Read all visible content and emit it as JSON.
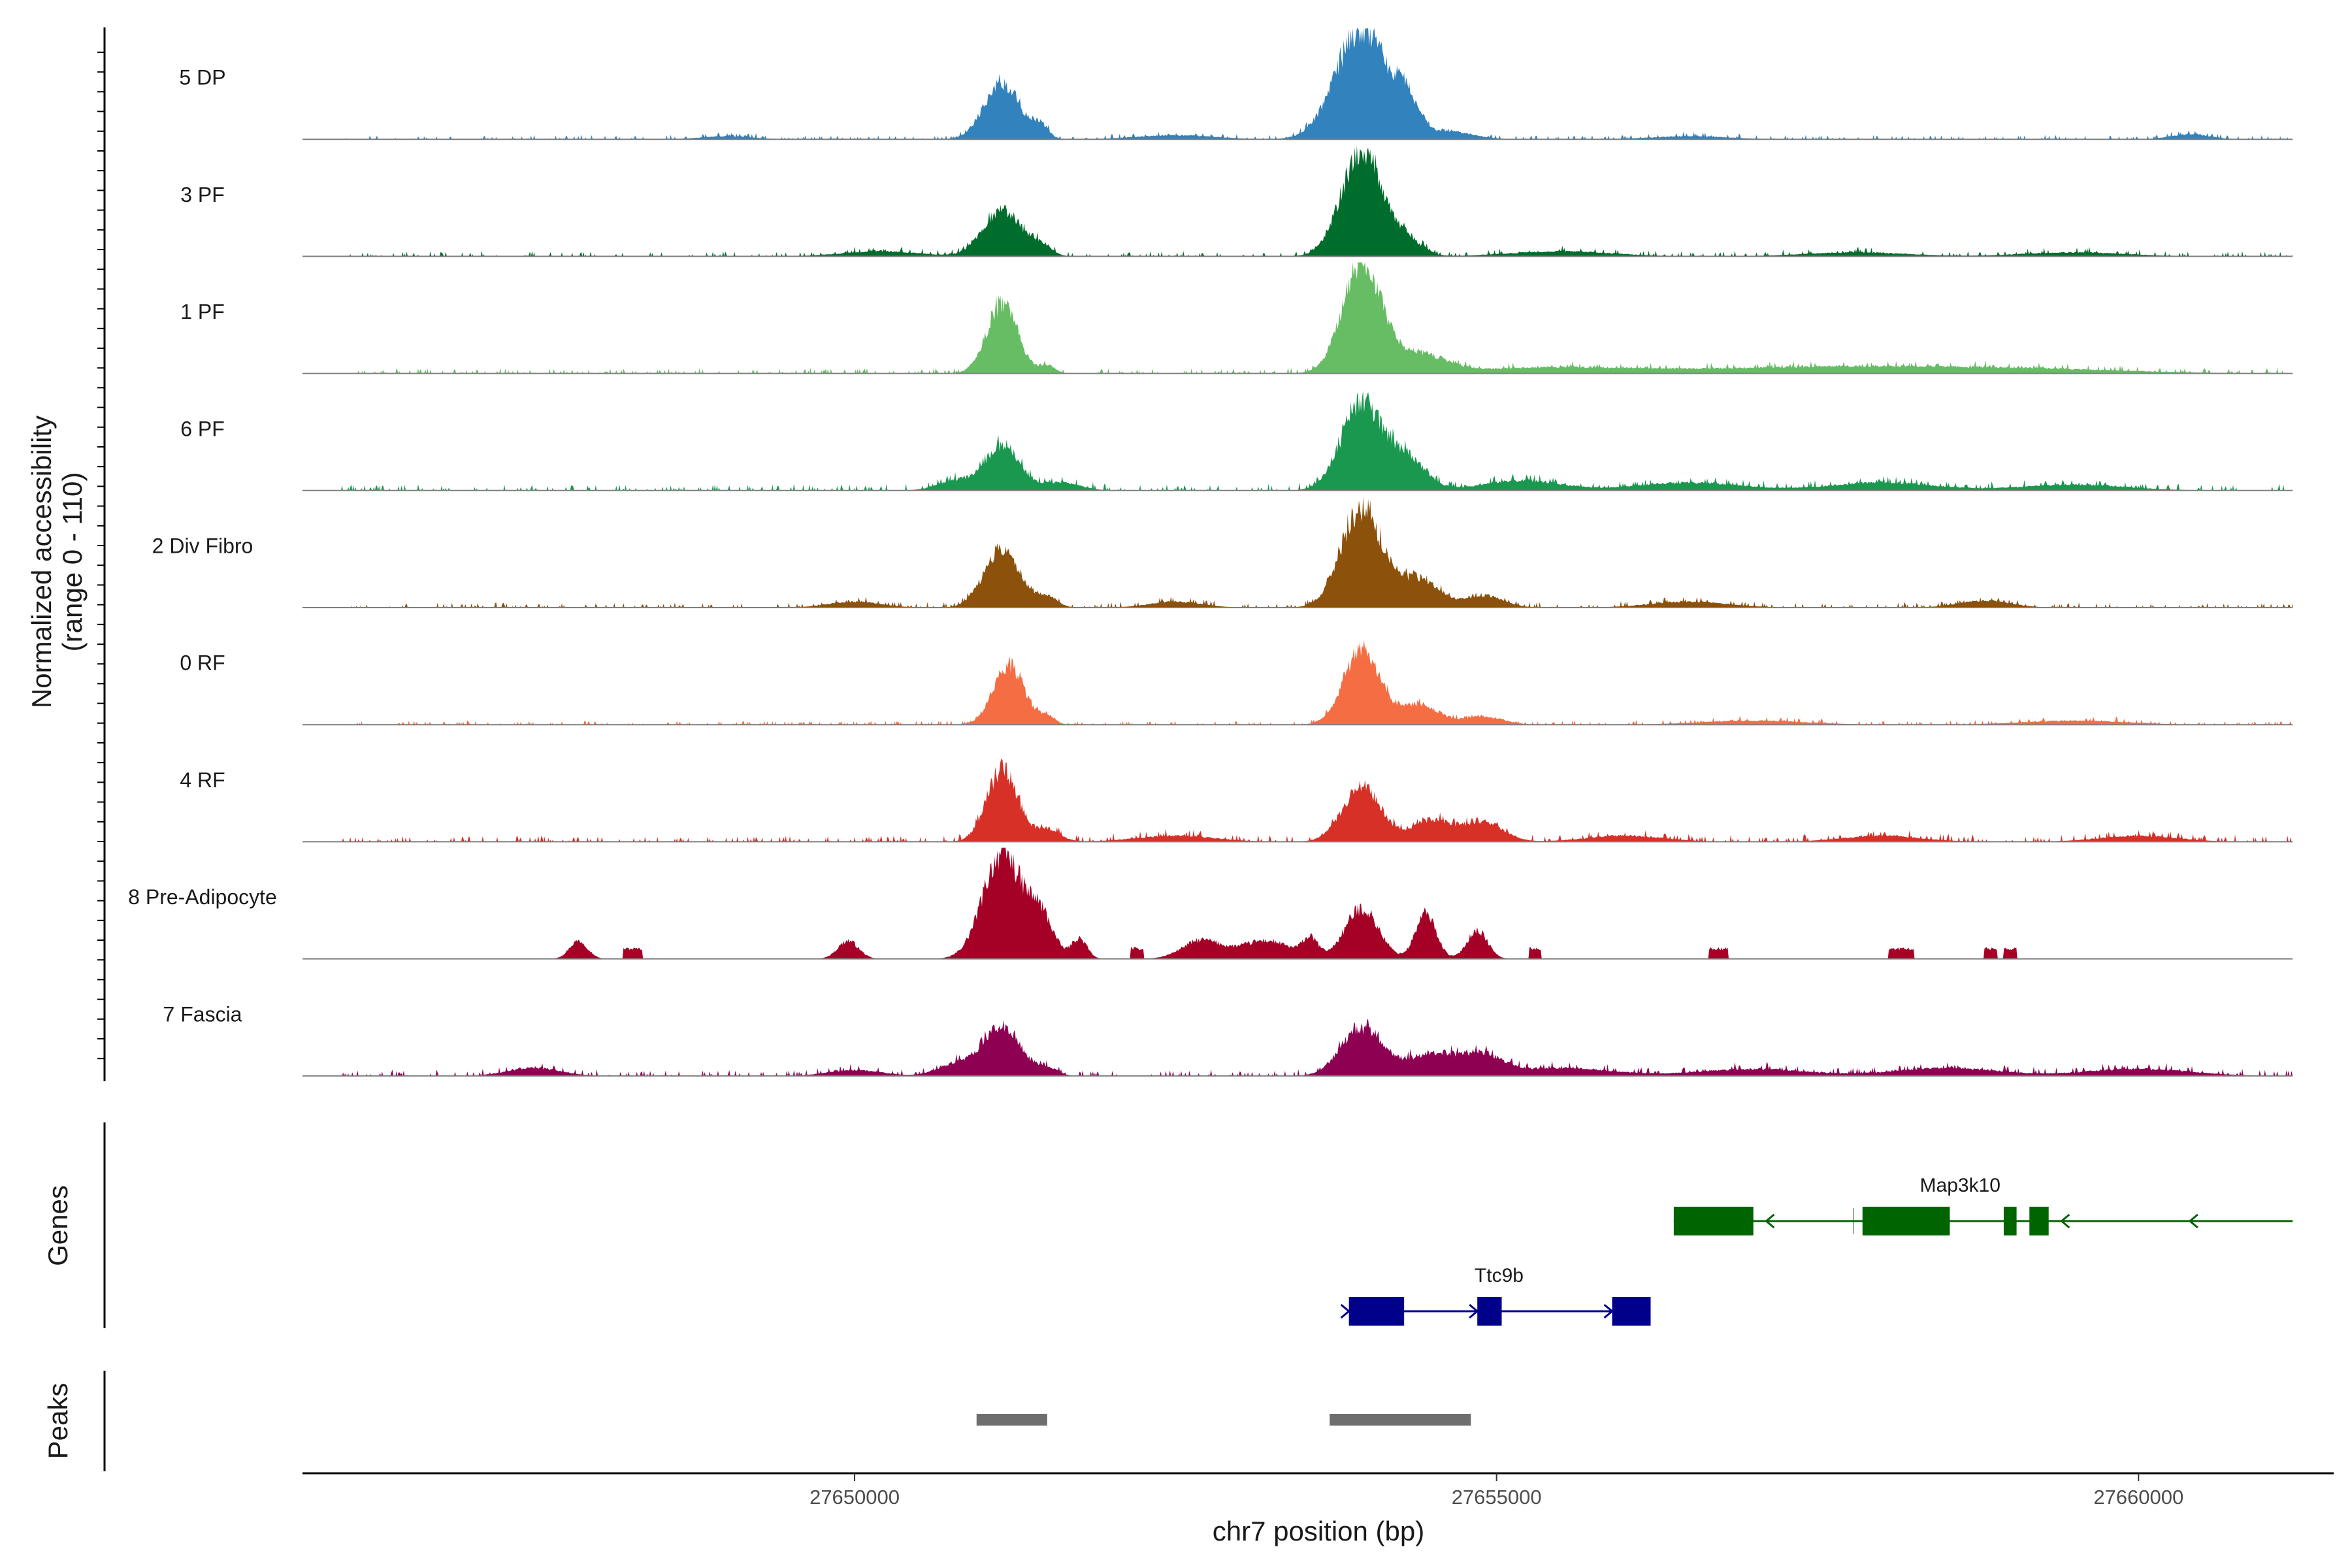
{
  "chart_data": {
    "type": "area",
    "title": "",
    "xlabel": "chr7 position (bp)",
    "ylabel": "Normalized accessibility",
    "ylabel_sub": "(range 0 - 110)",
    "ylim": [
      0,
      110
    ],
    "xlim": [
      27646000,
      27661200
    ],
    "x_ticks": [
      27650000,
      27655000,
      27660000
    ],
    "x_tick_labels": [
      "27650000",
      "27655000",
      "27660000"
    ],
    "genes_label": "Genes",
    "peaks_label": "Peaks",
    "tracks": [
      {
        "name": "5 DP",
        "color": "#3182bd",
        "peaks": [
          [
            27651150,
            55,
            140
          ],
          [
            27651450,
            12,
            60
          ],
          [
            27653950,
            110,
            200
          ],
          [
            27654300,
            28,
            90
          ],
          [
            27654600,
            8,
            200
          ],
          [
            27649000,
            3,
            200
          ],
          [
            27652500,
            4,
            300
          ],
          [
            27656500,
            3,
            300
          ],
          [
            27660400,
            5,
            150
          ]
        ],
        "noise": 2,
        "seed": 11
      },
      {
        "name": "3 PF",
        "color": "#006d2c",
        "peaks": [
          [
            27651150,
            45,
            150
          ],
          [
            27651450,
            10,
            80
          ],
          [
            27653950,
            103,
            160
          ],
          [
            27654300,
            15,
            120
          ],
          [
            27650200,
            5,
            300
          ],
          [
            27655500,
            5,
            400
          ],
          [
            27657800,
            4,
            400
          ],
          [
            27659500,
            4,
            400
          ]
        ],
        "noise": 2.5,
        "seed": 23
      },
      {
        "name": "1 PF",
        "color": "#66bd63",
        "peaks": [
          [
            27651150,
            68,
            120
          ],
          [
            27651500,
            8,
            60
          ],
          [
            27653950,
            110,
            150
          ],
          [
            27654400,
            18,
            200
          ],
          [
            27655500,
            6,
            700
          ],
          [
            27657500,
            6,
            800
          ],
          [
            27659000,
            5,
            800
          ]
        ],
        "noise": 2.5,
        "seed": 37
      },
      {
        "name": "6 PF",
        "color": "#1a9850",
        "peaks": [
          [
            27651150,
            45,
            130
          ],
          [
            27650800,
            10,
            150
          ],
          [
            27651600,
            8,
            150
          ],
          [
            27653950,
            85,
            160
          ],
          [
            27654300,
            30,
            150
          ],
          [
            27655200,
            10,
            300
          ],
          [
            27656500,
            8,
            400
          ],
          [
            27658000,
            8,
            400
          ],
          [
            27659500,
            6,
            400
          ]
        ],
        "noise": 3,
        "seed": 41
      },
      {
        "name": "2 Div Fibro",
        "color": "#8c510a",
        "peaks": [
          [
            27651150,
            58,
            140
          ],
          [
            27651500,
            10,
            80
          ],
          [
            27653950,
            98,
            160
          ],
          [
            27654400,
            28,
            150
          ],
          [
            27654900,
            12,
            150
          ],
          [
            27650000,
            6,
            200
          ],
          [
            27652500,
            6,
            200
          ],
          [
            27656500,
            6,
            300
          ],
          [
            27658800,
            7,
            200
          ]
        ],
        "noise": 2.5,
        "seed": 53
      },
      {
        "name": "0 RF",
        "color": "#f46d43",
        "peaks": [
          [
            27651200,
            60,
            120
          ],
          [
            27651500,
            8,
            60
          ],
          [
            27653950,
            75,
            140
          ],
          [
            27654400,
            20,
            150
          ],
          [
            27654900,
            8,
            150
          ],
          [
            27657000,
            4,
            400
          ],
          [
            27659500,
            4,
            400
          ]
        ],
        "noise": 2,
        "seed": 67
      },
      {
        "name": "4 RF",
        "color": "#d73027",
        "peaks": [
          [
            27651150,
            72,
            120
          ],
          [
            27651500,
            12,
            100
          ],
          [
            27653950,
            55,
            150
          ],
          [
            27654500,
            22,
            150
          ],
          [
            27654900,
            20,
            150
          ],
          [
            27652500,
            6,
            300
          ],
          [
            27656000,
            6,
            300
          ],
          [
            27658000,
            6,
            300
          ],
          [
            27660000,
            6,
            300
          ]
        ],
        "noise": 3,
        "seed": 79
      },
      {
        "name": "8 Pre-Adipocyte",
        "color": "#a50026",
        "peaks": [
          [
            27651150,
            105,
            150
          ],
          [
            27651450,
            40,
            100
          ],
          [
            27651750,
            20,
            60
          ],
          [
            27653950,
            50,
            130
          ],
          [
            27654450,
            45,
            80
          ],
          [
            27654850,
            28,
            80
          ],
          [
            27653200,
            18,
            200
          ],
          [
            27652700,
            18,
            150
          ],
          [
            27649950,
            18,
            80
          ],
          [
            27647850,
            18,
            70
          ],
          [
            27653550,
            18,
            60
          ]
        ],
        "blocks": [
          [
            27648200,
            27648350,
            10
          ],
          [
            27655250,
            27655350,
            10
          ],
          [
            27656650,
            27656800,
            10
          ],
          [
            27658050,
            27658250,
            10
          ],
          [
            27658800,
            27658900,
            10
          ],
          [
            27658950,
            27659050,
            10
          ],
          [
            27652150,
            27652250,
            10
          ]
        ],
        "noise": 0,
        "seed": 97
      },
      {
        "name": "7 Fascia",
        "color": "#8e0152",
        "peaks": [
          [
            27651150,
            50,
            140
          ],
          [
            27650800,
            12,
            150
          ],
          [
            27651500,
            8,
            80
          ],
          [
            27653950,
            48,
            160
          ],
          [
            27654500,
            22,
            200
          ],
          [
            27654900,
            18,
            150
          ],
          [
            27650000,
            6,
            200
          ],
          [
            27647500,
            8,
            200
          ],
          [
            27655500,
            8,
            400
          ],
          [
            27657000,
            7,
            400
          ],
          [
            27658500,
            8,
            400
          ],
          [
            27660000,
            7,
            400
          ]
        ],
        "noise": 3,
        "seed": 101
      }
    ],
    "genes": [
      {
        "name": "Map3k10",
        "color": "#006400",
        "strand": "-",
        "start": 27656380,
        "end": 27661200,
        "exons": [
          [
            27656380,
            27657000
          ],
          [
            27657850,
            27658530
          ],
          [
            27658950,
            27659050
          ],
          [
            27659150,
            27659300
          ]
        ],
        "arrows": [
          27657100,
          27659400,
          27660400
        ],
        "tick": 27657780
      },
      {
        "name": "Ttc9b",
        "color": "#00008b",
        "strand": "+",
        "start": 27653850,
        "end": 27656200,
        "exons": [
          [
            27653850,
            27654280
          ],
          [
            27654850,
            27655040
          ],
          [
            27655900,
            27656200
          ]
        ],
        "arrows": [
          27653850,
          27654850,
          27655900
        ]
      }
    ],
    "peaks_track": [
      [
        27650950,
        27651500
      ],
      [
        27653700,
        27654800
      ]
    ]
  }
}
